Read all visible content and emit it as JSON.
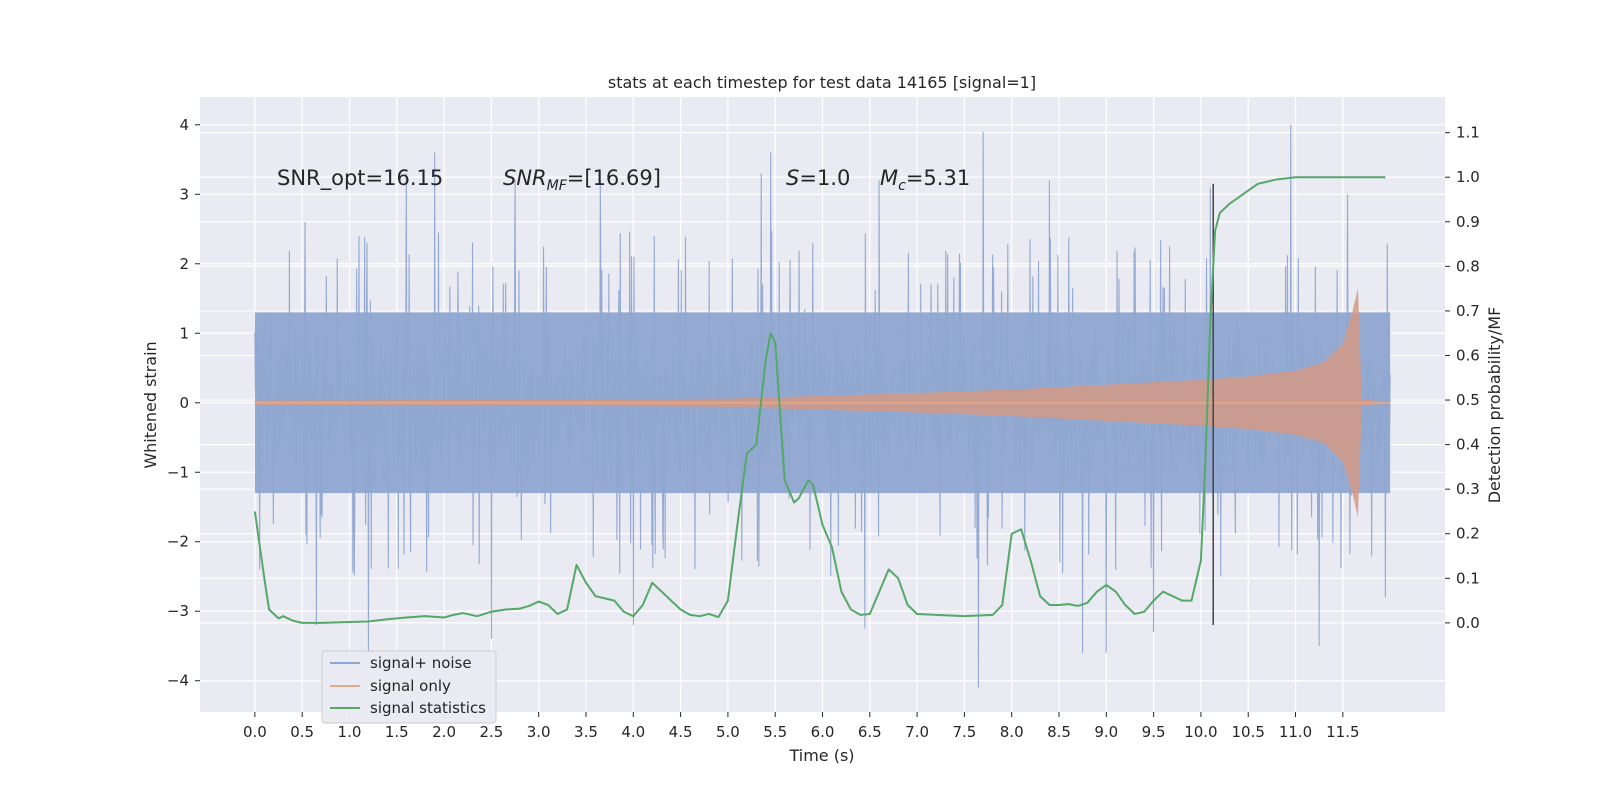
{
  "chart_data": {
    "type": "line",
    "title": "stats at each timestep for test data 14165 [signal=1]",
    "xlabel": "Time (s)",
    "ylabel_left": "Whitened strain",
    "ylabel_right": "Detection probability/MF",
    "xlim": [
      -0.58,
      12.58
    ],
    "ylim_left": [
      -4.45,
      4.4
    ],
    "ylim_right": [
      -0.2,
      1.18
    ],
    "x_ticks": [
      0.0,
      0.5,
      1.0,
      1.5,
      2.0,
      2.5,
      3.0,
      3.5,
      4.0,
      4.5,
      5.0,
      5.5,
      6.0,
      6.5,
      7.0,
      7.5,
      8.0,
      8.5,
      9.0,
      9.5,
      10.0,
      10.5,
      11.0,
      11.5
    ],
    "x_tick_labels": [
      "0.0",
      "0.5",
      "1.0",
      "1.5",
      "2.0",
      "2.5",
      "3.0",
      "3.5",
      "4.0",
      "4.5",
      "5.0",
      "5.5",
      "6.0",
      "6.5",
      "7.0",
      "7.5",
      "8.0",
      "8.5",
      "9.0",
      "9.5",
      "10.0",
      "10.5",
      "11.0",
      "11.5"
    ],
    "y_left_ticks": [
      -4,
      -3,
      -2,
      -1,
      0,
      1,
      2,
      3,
      4
    ],
    "y_left_tick_labels": [
      "−4",
      "−3",
      "−2",
      "−1",
      "0",
      "1",
      "2",
      "3",
      "4"
    ],
    "y_right_ticks": [
      0.0,
      0.1,
      0.2,
      0.3,
      0.4,
      0.5,
      0.6,
      0.7,
      0.8,
      0.9,
      1.0,
      1.1
    ],
    "y_right_tick_labels": [
      "0.0",
      "0.1",
      "0.2",
      "0.3",
      "0.4",
      "0.5",
      "0.6",
      "0.7",
      "0.8",
      "0.9",
      "1.0",
      "1.1"
    ],
    "grid": true,
    "legend_position": "lower-left",
    "series": [
      {
        "name": "signal+ noise",
        "axis": "left",
        "color": "#8fa6d0",
        "x_range": [
          0.0,
          12.0
        ],
        "typical_range": [
          -1.5,
          1.5
        ],
        "peaks": [
          {
            "x": 0.53,
            "y": 2.6
          },
          {
            "x": 1.1,
            "y": 2.4
          },
          {
            "x": 1.6,
            "y": 3.3
          },
          {
            "x": 1.9,
            "y": 3.6
          },
          {
            "x": 2.75,
            "y": 3.2
          },
          {
            "x": 3.65,
            "y": 3.2
          },
          {
            "x": 5.35,
            "y": 3.3
          },
          {
            "x": 5.45,
            "y": 3.6
          },
          {
            "x": 6.6,
            "y": 3.2
          },
          {
            "x": 7.7,
            "y": 3.9
          },
          {
            "x": 8.4,
            "y": 3.2
          },
          {
            "x": 10.1,
            "y": 3.1
          },
          {
            "x": 10.95,
            "y": 4.0
          },
          {
            "x": 11.55,
            "y": 3.0
          },
          {
            "x": 0.05,
            "y": -2.4
          },
          {
            "x": 0.65,
            "y": -3.2
          },
          {
            "x": 1.2,
            "y": -3.6
          },
          {
            "x": 2.5,
            "y": -3.4
          },
          {
            "x": 4.0,
            "y": -3.2
          },
          {
            "x": 6.45,
            "y": -3.25
          },
          {
            "x": 7.65,
            "y": -4.1
          },
          {
            "x": 8.75,
            "y": -3.6
          },
          {
            "x": 9.0,
            "y": -3.6
          },
          {
            "x": 9.5,
            "y": -3.3
          },
          {
            "x": 11.25,
            "y": -3.5
          },
          {
            "x": 11.95,
            "y": -2.8
          }
        ]
      },
      {
        "name": "signal only",
        "axis": "left",
        "color": "#dd8452",
        "x_range": [
          0.0,
          12.0
        ],
        "envelope": [
          {
            "x": 0.0,
            "y": 0.03
          },
          {
            "x": 1.0,
            "y": 0.035
          },
          {
            "x": 2.0,
            "y": 0.04
          },
          {
            "x": 3.0,
            "y": 0.045
          },
          {
            "x": 4.0,
            "y": 0.05
          },
          {
            "x": 5.0,
            "y": 0.06
          },
          {
            "x": 5.5,
            "y": 0.08
          },
          {
            "x": 6.0,
            "y": 0.1
          },
          {
            "x": 7.0,
            "y": 0.14
          },
          {
            "x": 8.0,
            "y": 0.19
          },
          {
            "x": 9.0,
            "y": 0.26
          },
          {
            "x": 10.0,
            "y": 0.33
          },
          {
            "x": 10.5,
            "y": 0.38
          },
          {
            "x": 11.0,
            "y": 0.46
          },
          {
            "x": 11.3,
            "y": 0.58
          },
          {
            "x": 11.5,
            "y": 0.85
          },
          {
            "x": 11.6,
            "y": 1.3
          },
          {
            "x": 11.66,
            "y": 1.65
          },
          {
            "x": 11.7,
            "y": 0.05
          },
          {
            "x": 12.0,
            "y": 0.0
          }
        ]
      },
      {
        "name": "signal statistics",
        "axis": "right",
        "color": "#55a868",
        "x": [
          0.0,
          0.1,
          0.15,
          0.25,
          0.3,
          0.4,
          0.5,
          0.7,
          1.0,
          1.2,
          1.4,
          1.6,
          1.8,
          2.0,
          2.1,
          2.2,
          2.35,
          2.5,
          2.65,
          2.8,
          2.9,
          3.0,
          3.1,
          3.2,
          3.3,
          3.4,
          3.5,
          3.6,
          3.8,
          3.9,
          4.0,
          4.1,
          4.2,
          4.3,
          4.4,
          4.5,
          4.6,
          4.7,
          4.8,
          4.9,
          5.0,
          5.1,
          5.2,
          5.3,
          5.4,
          5.45,
          5.5,
          5.6,
          5.7,
          5.75,
          5.85,
          5.9,
          6.0,
          6.1,
          6.2,
          6.3,
          6.4,
          6.5,
          6.6,
          6.7,
          6.8,
          6.9,
          7.0,
          7.2,
          7.5,
          7.8,
          7.9,
          8.0,
          8.1,
          8.2,
          8.3,
          8.4,
          8.5,
          8.6,
          8.7,
          8.8,
          8.9,
          9.0,
          9.1,
          9.2,
          9.3,
          9.4,
          9.5,
          9.6,
          9.7,
          9.8,
          9.9,
          10.0,
          10.05,
          10.1,
          10.15,
          10.2,
          10.3,
          10.4,
          10.5,
          10.6,
          10.8,
          11.0,
          11.5,
          11.95
        ],
        "y": [
          0.25,
          0.1,
          0.03,
          0.01,
          0.015,
          0.005,
          0.0,
          0.0,
          0.002,
          0.003,
          0.008,
          0.012,
          0.015,
          0.012,
          0.018,
          0.022,
          0.015,
          0.025,
          0.03,
          0.032,
          0.038,
          0.048,
          0.04,
          0.02,
          0.03,
          0.13,
          0.09,
          0.06,
          0.05,
          0.025,
          0.015,
          0.04,
          0.09,
          0.07,
          0.05,
          0.03,
          0.018,
          0.015,
          0.02,
          0.013,
          0.05,
          0.22,
          0.38,
          0.4,
          0.59,
          0.65,
          0.63,
          0.32,
          0.27,
          0.28,
          0.32,
          0.31,
          0.22,
          0.17,
          0.07,
          0.03,
          0.018,
          0.02,
          0.07,
          0.12,
          0.1,
          0.04,
          0.02,
          0.018,
          0.015,
          0.018,
          0.04,
          0.2,
          0.21,
          0.14,
          0.06,
          0.04,
          0.04,
          0.042,
          0.038,
          0.045,
          0.07,
          0.085,
          0.07,
          0.04,
          0.02,
          0.025,
          0.05,
          0.07,
          0.06,
          0.05,
          0.05,
          0.14,
          0.38,
          0.68,
          0.88,
          0.92,
          0.94,
          0.955,
          0.97,
          0.985,
          0.995,
          1.0,
          1.0,
          1.0
        ]
      }
    ],
    "vertical_line": {
      "x": 10.13,
      "ymin": -3.2,
      "ymax": 3.15,
      "color": "#444444"
    },
    "annotations": [
      {
        "text": "SNR_opt=16.15",
        "x": 0.2,
        "y": 3.2
      },
      {
        "text_main": "SNR",
        "text_sub": "MF",
        "text_tail": "=[16.69]",
        "x": 2.6,
        "y": 3.2
      },
      {
        "text_main": "S",
        "text_tail": "=1.0",
        "x": 5.6,
        "y": 3.2
      },
      {
        "text_main": "M",
        "text_sub": "c",
        "text_tail": "=5.31",
        "x": 6.6,
        "y": 3.2
      }
    ]
  }
}
